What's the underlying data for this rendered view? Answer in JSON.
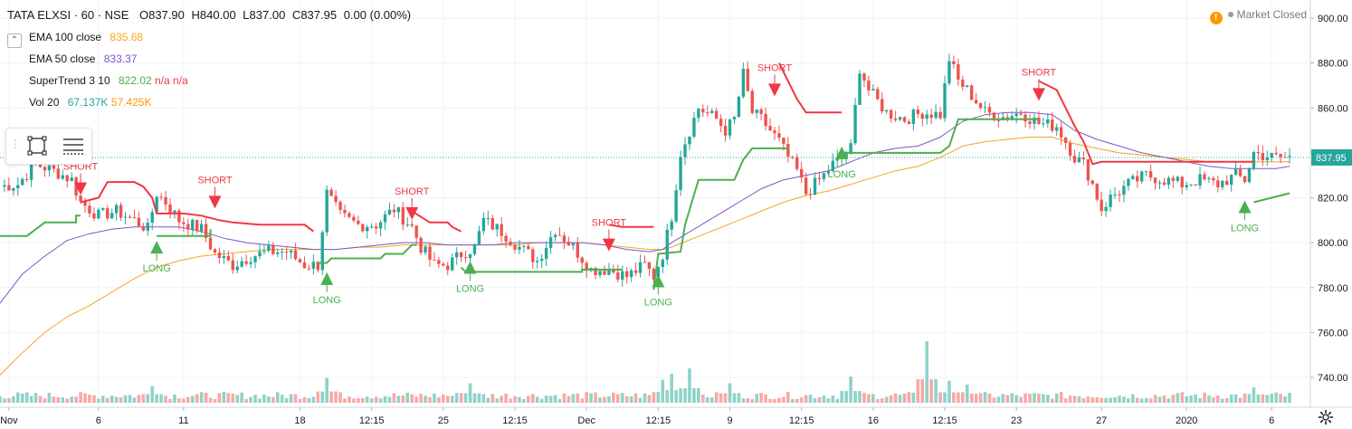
{
  "header": {
    "symbol": "TATA ELXSI · 60 · NSE",
    "o_label": "O",
    "o": "837.90",
    "h_label": "H",
    "h": "840.00",
    "l_label": "L",
    "l": "837.00",
    "c_label": "C",
    "c": "837.95",
    "change": "0.00 (0.00%)"
  },
  "legend": [
    {
      "name": "EMA 100 close",
      "values": [
        "835.68"
      ],
      "colors": [
        "#f5a623"
      ]
    },
    {
      "name": "EMA 50 close",
      "values": [
        "833.37"
      ],
      "colors": [
        "#7e57c2"
      ]
    },
    {
      "name": "SuperTrend 3 10",
      "values": [
        "822.02",
        "n/a",
        "n/a"
      ],
      "colors": [
        "#4caf50",
        "#f23645",
        "#f23645"
      ]
    },
    {
      "name": "Vol 20",
      "values": [
        "67.137K",
        "57.425K"
      ],
      "colors": [
        "#26a69a",
        "#ff9800"
      ]
    }
  ],
  "market_status": "Market Closed",
  "price_label": "837.95",
  "toolbar": {
    "rect_icon": "rectangle-icon",
    "lines_icon": "lines-icon"
  },
  "colors": {
    "up": "#26a69a",
    "down": "#ef5350",
    "st_up": "#4caf50",
    "st_down": "#f23645",
    "ema100": "#f5a623",
    "ema50": "#7e57c2",
    "vol_up": "#8fd3c8",
    "vol_down": "#f7a9a7"
  },
  "chart_data": {
    "type": "line",
    "y_range": [
      724,
      904
    ],
    "y_ticks": [
      "900.00",
      "880.00",
      "860.00",
      "840.00",
      "820.00",
      "800.00",
      "780.00",
      "760.00",
      "740.00"
    ],
    "y_tick_values": [
      900,
      880,
      860,
      840,
      820,
      800,
      780,
      760,
      740
    ],
    "x_range": [
      0,
      300
    ],
    "x_ticks": [
      {
        "label": "Nov",
        "x": 2
      },
      {
        "label": "6",
        "x": 22
      },
      {
        "label": "11",
        "x": 41
      },
      {
        "label": "18",
        "x": 67
      },
      {
        "label": "12:15",
        "x": 83
      },
      {
        "label": "25",
        "x": 99
      },
      {
        "label": "12:15",
        "x": 115
      },
      {
        "label": "Dec",
        "x": 131
      },
      {
        "label": "12:15",
        "x": 147
      },
      {
        "label": "9",
        "x": 163
      },
      {
        "label": "12:15",
        "x": 179
      },
      {
        "label": "16",
        "x": 195
      },
      {
        "label": "12:15",
        "x": 211
      },
      {
        "label": "23",
        "x": 227
      },
      {
        "label": "27",
        "x": 246
      },
      {
        "label": "2020",
        "x": 265
      },
      {
        "label": "6",
        "x": 284
      }
    ],
    "price_anchors": [
      [
        0,
        825
      ],
      [
        4,
        826
      ],
      [
        8,
        835
      ],
      [
        12,
        832
      ],
      [
        16,
        828
      ],
      [
        18,
        818
      ],
      [
        22,
        812
      ],
      [
        26,
        814
      ],
      [
        30,
        810
      ],
      [
        33,
        806
      ],
      [
        35,
        822
      ],
      [
        37,
        818
      ],
      [
        40,
        810
      ],
      [
        45,
        806
      ],
      [
        48,
        795
      ],
      [
        52,
        790
      ],
      [
        56,
        794
      ],
      [
        60,
        796
      ],
      [
        64,
        796
      ],
      [
        68,
        790
      ],
      [
        71,
        790
      ],
      [
        73,
        822
      ],
      [
        76,
        812
      ],
      [
        80,
        808
      ],
      [
        84,
        808
      ],
      [
        88,
        815
      ],
      [
        92,
        807
      ],
      [
        94,
        798
      ],
      [
        97,
        790
      ],
      [
        100,
        790
      ],
      [
        103,
        795
      ],
      [
        106,
        798
      ],
      [
        108,
        810
      ],
      [
        112,
        805
      ],
      [
        116,
        798
      ],
      [
        120,
        792
      ],
      [
        124,
        806
      ],
      [
        128,
        798
      ],
      [
        132,
        788
      ],
      [
        136,
        788
      ],
      [
        140,
        785
      ],
      [
        144,
        790
      ],
      [
        146,
        785
      ],
      [
        148,
        795
      ],
      [
        150,
        812
      ],
      [
        152,
        840
      ],
      [
        154,
        850
      ],
      [
        156,
        860
      ],
      [
        160,
        855
      ],
      [
        162,
        850
      ],
      [
        164,
        855
      ],
      [
        166,
        875
      ],
      [
        168,
        858
      ],
      [
        170,
        855
      ],
      [
        172,
        850
      ],
      [
        174,
        845
      ],
      [
        176,
        838
      ],
      [
        178,
        832
      ],
      [
        180,
        822
      ],
      [
        184,
        830
      ],
      [
        186,
        835
      ],
      [
        188,
        838
      ],
      [
        190,
        842
      ],
      [
        192,
        878
      ],
      [
        194,
        868
      ],
      [
        198,
        858
      ],
      [
        202,
        855
      ],
      [
        206,
        858
      ],
      [
        210,
        857
      ],
      [
        212,
        882
      ],
      [
        214,
        872
      ],
      [
        216,
        868
      ],
      [
        220,
        858
      ],
      [
        224,
        856
      ],
      [
        228,
        858
      ],
      [
        232,
        853
      ],
      [
        236,
        852
      ],
      [
        240,
        838
      ],
      [
        242,
        835
      ],
      [
        244,
        826
      ],
      [
        246,
        815
      ],
      [
        248,
        820
      ],
      [
        252,
        826
      ],
      [
        256,
        830
      ],
      [
        260,
        828
      ],
      [
        264,
        826
      ],
      [
        268,
        828
      ],
      [
        272,
        826
      ],
      [
        276,
        830
      ],
      [
        278,
        828
      ],
      [
        280,
        840
      ],
      [
        284,
        838
      ],
      [
        288,
        838
      ]
    ],
    "ema50_anchors": [
      [
        0,
        773
      ],
      [
        5,
        786
      ],
      [
        10,
        794
      ],
      [
        15,
        801
      ],
      [
        20,
        804
      ],
      [
        25,
        806
      ],
      [
        30,
        807
      ],
      [
        35,
        807
      ],
      [
        40,
        807
      ],
      [
        45,
        805
      ],
      [
        50,
        802
      ],
      [
        55,
        800
      ],
      [
        60,
        799
      ],
      [
        65,
        798
      ],
      [
        70,
        797
      ],
      [
        75,
        797
      ],
      [
        80,
        798
      ],
      [
        85,
        799
      ],
      [
        90,
        800
      ],
      [
        95,
        800
      ],
      [
        100,
        799
      ],
      [
        105,
        799
      ],
      [
        110,
        799
      ],
      [
        115,
        800
      ],
      [
        120,
        800
      ],
      [
        125,
        800
      ],
      [
        130,
        800
      ],
      [
        135,
        799
      ],
      [
        140,
        797
      ],
      [
        145,
        796
      ],
      [
        148,
        797
      ],
      [
        150,
        800
      ],
      [
        155,
        806
      ],
      [
        160,
        812
      ],
      [
        165,
        818
      ],
      [
        170,
        824
      ],
      [
        175,
        828
      ],
      [
        180,
        830
      ],
      [
        185,
        832
      ],
      [
        190,
        836
      ],
      [
        195,
        840
      ],
      [
        200,
        842
      ],
      [
        205,
        843
      ],
      [
        210,
        847
      ],
      [
        215,
        854
      ],
      [
        220,
        857
      ],
      [
        225,
        858
      ],
      [
        230,
        858
      ],
      [
        235,
        857
      ],
      [
        240,
        850
      ],
      [
        245,
        846
      ],
      [
        250,
        843
      ],
      [
        255,
        840
      ],
      [
        260,
        838
      ],
      [
        265,
        836
      ],
      [
        270,
        834
      ],
      [
        275,
        833
      ],
      [
        280,
        833
      ],
      [
        285,
        833
      ],
      [
        288,
        834
      ]
    ],
    "ema100_anchors": [
      [
        0,
        741
      ],
      [
        5,
        751
      ],
      [
        10,
        760
      ],
      [
        15,
        767
      ],
      [
        20,
        772
      ],
      [
        25,
        778
      ],
      [
        30,
        784
      ],
      [
        35,
        789
      ],
      [
        40,
        792
      ],
      [
        45,
        794
      ],
      [
        50,
        795
      ],
      [
        55,
        796
      ],
      [
        60,
        797
      ],
      [
        65,
        797
      ],
      [
        70,
        797
      ],
      [
        75,
        797
      ],
      [
        80,
        798
      ],
      [
        85,
        798
      ],
      [
        90,
        799
      ],
      [
        95,
        799
      ],
      [
        100,
        799
      ],
      [
        105,
        799
      ],
      [
        110,
        799
      ],
      [
        115,
        799
      ],
      [
        120,
        800
      ],
      [
        125,
        800
      ],
      [
        130,
        800
      ],
      [
        135,
        799
      ],
      [
        140,
        798
      ],
      [
        145,
        797
      ],
      [
        148,
        797
      ],
      [
        150,
        798
      ],
      [
        155,
        802
      ],
      [
        160,
        806
      ],
      [
        165,
        810
      ],
      [
        170,
        814
      ],
      [
        175,
        818
      ],
      [
        180,
        821
      ],
      [
        185,
        823
      ],
      [
        190,
        826
      ],
      [
        195,
        829
      ],
      [
        200,
        832
      ],
      [
        205,
        834
      ],
      [
        210,
        838
      ],
      [
        215,
        843
      ],
      [
        220,
        845
      ],
      [
        225,
        846
      ],
      [
        230,
        847
      ],
      [
        235,
        847
      ],
      [
        240,
        844
      ],
      [
        245,
        842
      ],
      [
        250,
        840
      ],
      [
        255,
        839
      ],
      [
        260,
        838
      ],
      [
        265,
        837
      ],
      [
        270,
        836
      ],
      [
        275,
        836
      ],
      [
        280,
        836
      ],
      [
        285,
        836
      ],
      [
        288,
        836
      ]
    ],
    "supertrend": [
      {
        "trend": "up",
        "points": [
          [
            0,
            803
          ],
          [
            6,
            803
          ],
          [
            10,
            809
          ],
          [
            17,
            809
          ],
          [
            17,
            812
          ],
          [
            18,
            812
          ]
        ]
      },
      {
        "trend": "down",
        "points": [
          [
            18,
            818
          ],
          [
            22,
            820
          ],
          [
            24,
            827
          ],
          [
            30,
            827
          ],
          [
            32,
            825
          ],
          [
            34,
            820
          ],
          [
            35,
            813
          ],
          [
            41,
            813
          ],
          [
            45,
            812
          ],
          [
            49,
            810
          ],
          [
            52,
            809
          ],
          [
            58,
            808
          ],
          [
            68,
            808
          ],
          [
            70,
            805
          ]
        ]
      },
      {
        "trend": "up",
        "points": [
          [
            35,
            803
          ],
          [
            47,
            803
          ],
          [
            47,
            806
          ]
        ]
      },
      {
        "trend": "up",
        "points": [
          [
            71,
            791
          ],
          [
            73,
            791
          ],
          [
            74,
            793
          ],
          [
            85,
            793
          ],
          [
            86,
            795
          ],
          [
            90,
            795
          ],
          [
            92,
            799
          ],
          [
            93,
            799
          ]
        ]
      },
      {
        "trend": "down",
        "points": [
          [
            92,
            814
          ],
          [
            96,
            809
          ],
          [
            100,
            809
          ],
          [
            101,
            807
          ],
          [
            103,
            805
          ]
        ]
      },
      {
        "trend": "up",
        "points": [
          [
            103,
            789
          ],
          [
            104,
            787
          ],
          [
            130,
            787
          ],
          [
            130,
            788
          ],
          [
            139,
            788
          ]
        ]
      },
      {
        "trend": "down",
        "points": [
          [
            136,
            808
          ],
          [
            139,
            807
          ],
          [
            146,
            807
          ]
        ]
      },
      {
        "trend": "up",
        "points": [
          [
            146,
            779
          ],
          [
            147,
            795
          ],
          [
            152,
            796
          ],
          [
            153,
            808
          ],
          [
            156,
            828
          ],
          [
            164,
            828
          ],
          [
            166,
            837
          ],
          [
            168,
            842
          ],
          [
            176,
            842
          ]
        ]
      },
      {
        "trend": "down",
        "points": [
          [
            174,
            880
          ],
          [
            176,
            872
          ],
          [
            178,
            864
          ],
          [
            180,
            858
          ],
          [
            188,
            858
          ]
        ]
      },
      {
        "trend": "up",
        "points": [
          [
            188,
            840
          ],
          [
            210,
            840
          ],
          [
            212,
            843
          ],
          [
            214,
            855
          ],
          [
            220,
            855
          ],
          [
            232,
            855
          ]
        ]
      },
      {
        "trend": "down",
        "points": [
          [
            232,
            872
          ],
          [
            236,
            868
          ],
          [
            238,
            860
          ],
          [
            240,
            852
          ],
          [
            242,
            845
          ],
          [
            244,
            835
          ],
          [
            246,
            836
          ],
          [
            264,
            836
          ],
          [
            280,
            836
          ]
        ]
      },
      {
        "trend": "up",
        "points": [
          [
            280,
            818
          ],
          [
            284,
            820
          ],
          [
            288,
            822
          ]
        ]
      }
    ],
    "signals": [
      {
        "type": "SHORT",
        "x": 18,
        "price": 822
      },
      {
        "type": "LONG",
        "x": 35,
        "price": 800
      },
      {
        "type": "SHORT",
        "x": 48,
        "price": 816
      },
      {
        "type": "LONG",
        "x": 73,
        "price": 786
      },
      {
        "type": "SHORT",
        "x": 92,
        "price": 811
      },
      {
        "type": "LONG",
        "x": 105,
        "price": 791
      },
      {
        "type": "SHORT",
        "x": 136,
        "price": 797
      },
      {
        "type": "LONG",
        "x": 147,
        "price": 785
      },
      {
        "type": "SHORT",
        "x": 173,
        "price": 866
      },
      {
        "type": "LONG",
        "x": 188,
        "price": 842
      },
      {
        "type": "SHORT",
        "x": 232,
        "price": 864
      },
      {
        "type": "LONG",
        "x": 278,
        "price": 818
      }
    ],
    "volume_spikes": [
      [
        34,
        0.35
      ],
      [
        73,
        0.65
      ],
      [
        105,
        0.45
      ],
      [
        148,
        0.58
      ],
      [
        150,
        0.8
      ],
      [
        154,
        1.0
      ],
      [
        163,
        0.45
      ],
      [
        190,
        0.7
      ],
      [
        207,
        2.0
      ],
      [
        212,
        0.55
      ],
      [
        216,
        0.4
      ],
      [
        280,
        0.3
      ]
    ]
  }
}
